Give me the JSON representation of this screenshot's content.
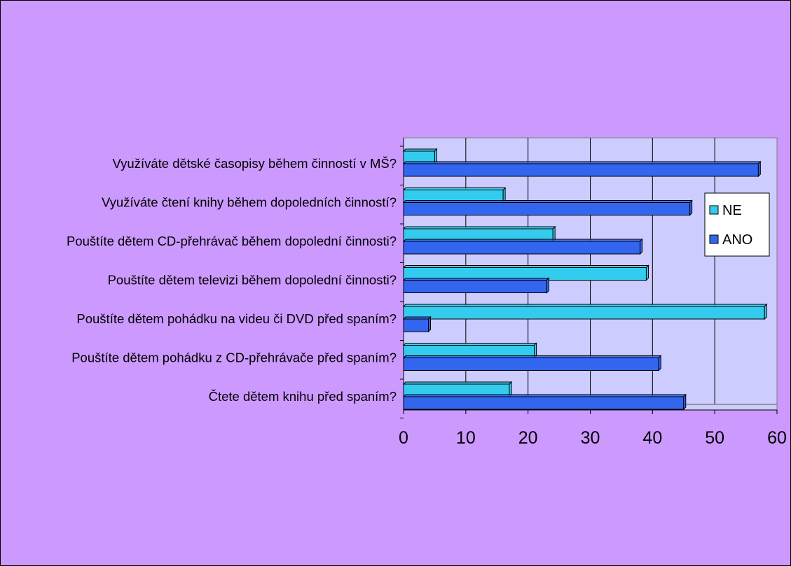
{
  "chart_data": {
    "type": "bar",
    "orientation": "horizontal",
    "categories": [
      "Využíváte dětské časopisy během činností v MŠ?",
      "Využíváte čtení knihy během dopoledních činností?",
      "Pouštíte dětem CD-přehrávač během dopolední činnosti?",
      "Pouštíte dětem televizi během dopolední činnosti?",
      "Pouštíte dětem pohádku na videu či DVD před spaním?",
      "Pouštíte dětem pohádku z CD-přehrávače před spaním?",
      "Čtete dětem knihu před spaním?"
    ],
    "series": [
      {
        "name": "NE",
        "values": [
          5,
          16,
          24,
          39,
          58,
          21,
          17
        ]
      },
      {
        "name": "ANO",
        "values": [
          57,
          46,
          38,
          23,
          4,
          41,
          45
        ]
      }
    ],
    "xlim": [
      0,
      60
    ],
    "xticks": [
      "0",
      "10",
      "20",
      "30",
      "40",
      "50",
      "60"
    ],
    "grid": true,
    "legend_position": "right",
    "colors": {
      "background": "#cc99ff",
      "plot_area": "#ccccff",
      "NE": "#33ccee",
      "ANO": "#3366ee"
    }
  }
}
